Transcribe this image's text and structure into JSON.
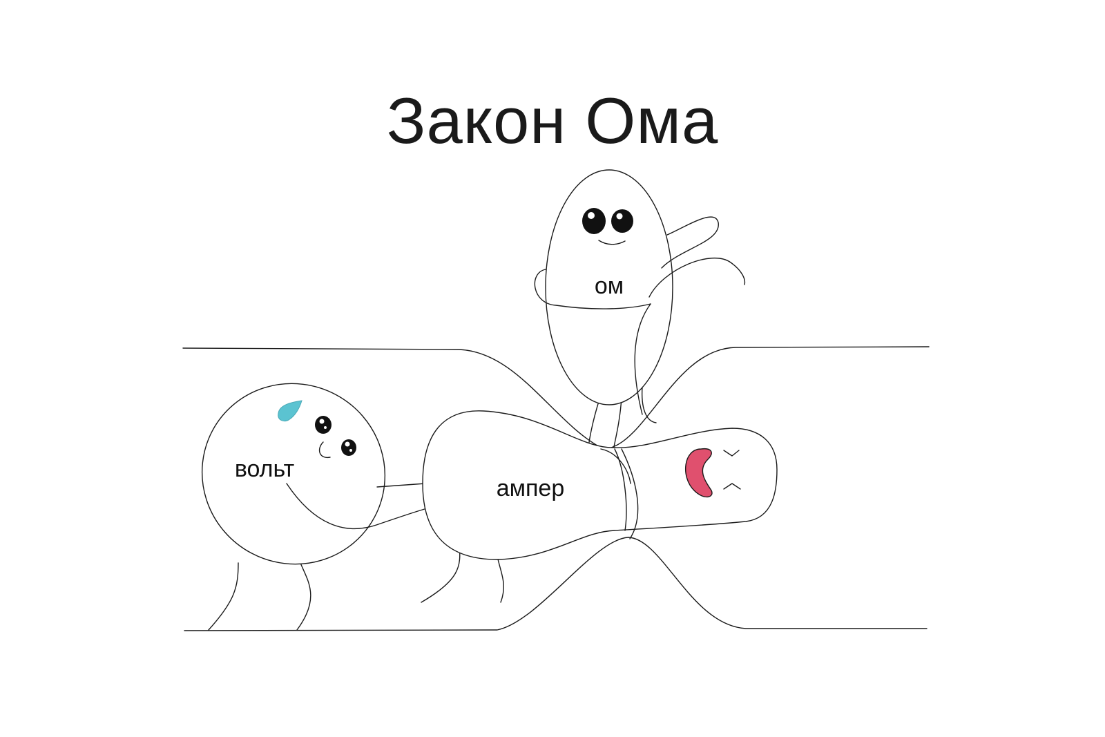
{
  "title": "Закон Ома",
  "characters": {
    "volt": {
      "label": "вольт",
      "drop_color": "#5bc3d1"
    },
    "ampere": {
      "label": "ампер",
      "mouth_color": "#e0506e"
    },
    "ohm": {
      "label": "ом"
    }
  }
}
